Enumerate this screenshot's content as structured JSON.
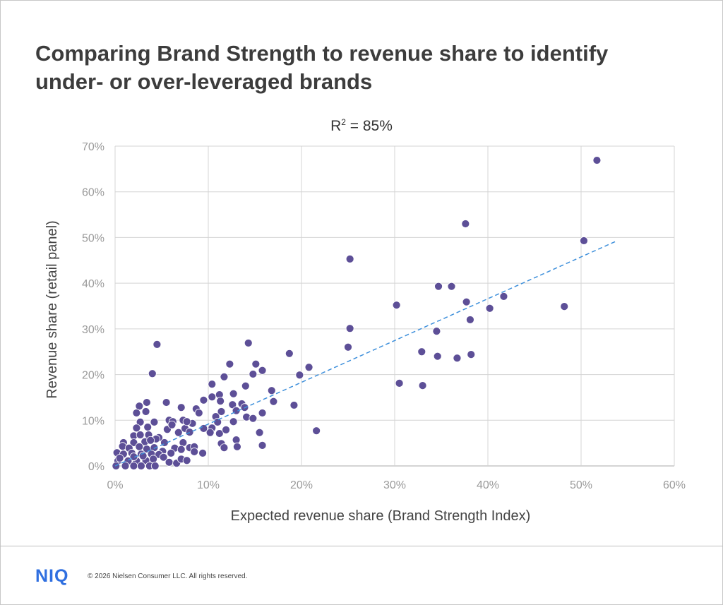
{
  "title": "Comparing Brand Strength to revenue share to identify under- or over-leveraged brands",
  "footer": {
    "logo": "NIQ",
    "copyright": "© 2026 Nielsen Consumer LLC. All rights reserved."
  },
  "chart_data": {
    "type": "scatter",
    "annotation": {
      "prefix": "R",
      "sup": "2",
      "suffix": " = 85%"
    },
    "xlabel": "Expected revenue share (Brand Strength Index)",
    "ylabel": "Revenue share (retail panel)",
    "xlim": [
      0,
      60
    ],
    "ylim": [
      0,
      70
    ],
    "xticks": [
      0,
      10,
      20,
      30,
      40,
      50,
      60
    ],
    "yticks": [
      0,
      10,
      20,
      30,
      40,
      50,
      60,
      70
    ],
    "xtick_labels": [
      "0%",
      "10%",
      "20%",
      "30%",
      "40%",
      "50%",
      "60%"
    ],
    "ytick_labels": [
      "0%",
      "10%",
      "20%",
      "30%",
      "40%",
      "50%",
      "60%",
      "70%"
    ],
    "grid": true,
    "colors": {
      "points": "#5d4f97",
      "trendline": "#3d8fdb",
      "grid": "#d4d4d4"
    },
    "trendline": {
      "style": "dashed",
      "slope": 0.915,
      "intercept": 0,
      "x_range": [
        0,
        53.8
      ]
    },
    "points": [
      [
        51.7,
        66.9
      ],
      [
        37.6,
        53.0
      ],
      [
        50.3,
        49.3
      ],
      [
        25.2,
        45.3
      ],
      [
        34.7,
        39.3
      ],
      [
        36.1,
        39.3
      ],
      [
        30.2,
        35.2
      ],
      [
        37.7,
        35.9
      ],
      [
        41.7,
        37.1
      ],
      [
        40.2,
        34.5
      ],
      [
        48.2,
        34.9
      ],
      [
        38.1,
        32.0
      ],
      [
        25.2,
        30.1
      ],
      [
        34.5,
        29.5
      ],
      [
        25.0,
        26.0
      ],
      [
        32.9,
        25.0
      ],
      [
        18.7,
        24.6
      ],
      [
        34.6,
        24.0
      ],
      [
        36.7,
        23.6
      ],
      [
        38.2,
        24.4
      ],
      [
        20.8,
        21.6
      ],
      [
        19.8,
        19.9
      ],
      [
        30.5,
        18.1
      ],
      [
        33.0,
        17.6
      ],
      [
        19.2,
        13.3
      ],
      [
        21.6,
        7.7
      ],
      [
        4.5,
        26.6
      ],
      [
        14.3,
        26.9
      ],
      [
        4.0,
        20.2
      ],
      [
        12.3,
        22.3
      ],
      [
        15.1,
        22.3
      ],
      [
        15.8,
        20.9
      ],
      [
        14.8,
        20.1
      ],
      [
        11.7,
        19.5
      ],
      [
        10.4,
        17.9
      ],
      [
        14.0,
        17.5
      ],
      [
        16.8,
        16.5
      ],
      [
        10.4,
        15.1
      ],
      [
        11.2,
        15.6
      ],
      [
        12.7,
        15.8
      ],
      [
        17.0,
        14.1
      ],
      [
        11.3,
        14.2
      ],
      [
        12.6,
        13.4
      ],
      [
        13.6,
        13.6
      ],
      [
        13.9,
        12.8
      ],
      [
        13.0,
        12.1
      ],
      [
        11.4,
        11.9
      ],
      [
        10.8,
        10.8
      ],
      [
        14.1,
        10.7
      ],
      [
        14.8,
        10.4
      ],
      [
        15.8,
        11.6
      ],
      [
        12.7,
        9.7
      ],
      [
        11.0,
        9.6
      ],
      [
        10.4,
        8.3
      ],
      [
        10.2,
        7.3
      ],
      [
        11.2,
        7.1
      ],
      [
        11.9,
        7.9
      ],
      [
        9.5,
        8.2
      ],
      [
        15.5,
        7.3
      ],
      [
        13.0,
        5.7
      ],
      [
        13.1,
        4.2
      ],
      [
        11.4,
        4.9
      ],
      [
        11.7,
        4.0
      ],
      [
        15.8,
        4.5
      ],
      [
        9.5,
        14.4
      ],
      [
        7.1,
        12.8
      ],
      [
        8.7,
        12.5
      ],
      [
        9.0,
        11.6
      ],
      [
        2.6,
        13.1
      ],
      [
        3.4,
        13.9
      ],
      [
        5.5,
        13.9
      ],
      [
        2.3,
        11.6
      ],
      [
        3.3,
        11.9
      ],
      [
        4.2,
        9.6
      ],
      [
        2.7,
        9.6
      ],
      [
        5.8,
        10.0
      ],
      [
        6.2,
        9.7
      ],
      [
        7.3,
        10.0
      ],
      [
        8.3,
        9.3
      ],
      [
        2.3,
        8.3
      ],
      [
        3.5,
        8.5
      ],
      [
        5.6,
        8.0
      ],
      [
        6.1,
        9.0
      ],
      [
        7.5,
        8.2
      ],
      [
        7.7,
        9.7
      ],
      [
        6.8,
        7.3
      ],
      [
        8.0,
        7.4
      ],
      [
        2.0,
        6.6
      ],
      [
        2.7,
        6.8
      ],
      [
        3.6,
        6.8
      ],
      [
        4.7,
        6.2
      ],
      [
        4.4,
        5.9
      ],
      [
        5.3,
        5.1
      ],
      [
        0.9,
        5.1
      ],
      [
        2.0,
        5.1
      ],
      [
        3.2,
        5.3
      ],
      [
        3.8,
        5.6
      ],
      [
        7.3,
        5.1
      ],
      [
        8.0,
        4.0
      ],
      [
        8.5,
        4.2
      ],
      [
        0.8,
        4.3
      ],
      [
        1.5,
        3.9
      ],
      [
        2.6,
        4.2
      ],
      [
        3.4,
        3.7
      ],
      [
        4.2,
        4.0
      ],
      [
        5.1,
        3.2
      ],
      [
        6.4,
        3.9
      ],
      [
        7.1,
        3.6
      ],
      [
        8.5,
        3.1
      ],
      [
        9.4,
        2.8
      ],
      [
        0.2,
        2.9
      ],
      [
        0.9,
        2.6
      ],
      [
        1.8,
        2.8
      ],
      [
        2.8,
        2.6
      ],
      [
        3.9,
        2.6
      ],
      [
        4.7,
        2.5
      ],
      [
        6.0,
        2.8
      ],
      [
        0.3,
        1.1
      ],
      [
        0.5,
        1.7
      ],
      [
        1.4,
        1.1
      ],
      [
        2.3,
        1.1
      ],
      [
        3.3,
        1.2
      ],
      [
        4.1,
        1.5
      ],
      [
        5.2,
        1.9
      ],
      [
        5.8,
        0.8
      ],
      [
        6.6,
        0.6
      ],
      [
        7.1,
        1.5
      ],
      [
        7.7,
        1.2
      ],
      [
        0.1,
        0.0
      ],
      [
        1.1,
        0.0
      ],
      [
        2.0,
        0.0
      ],
      [
        2.8,
        0.0
      ],
      [
        3.7,
        0.0
      ],
      [
        4.3,
        0.0
      ],
      [
        2.0,
        2.0
      ],
      [
        3.0,
        2.2
      ]
    ]
  }
}
